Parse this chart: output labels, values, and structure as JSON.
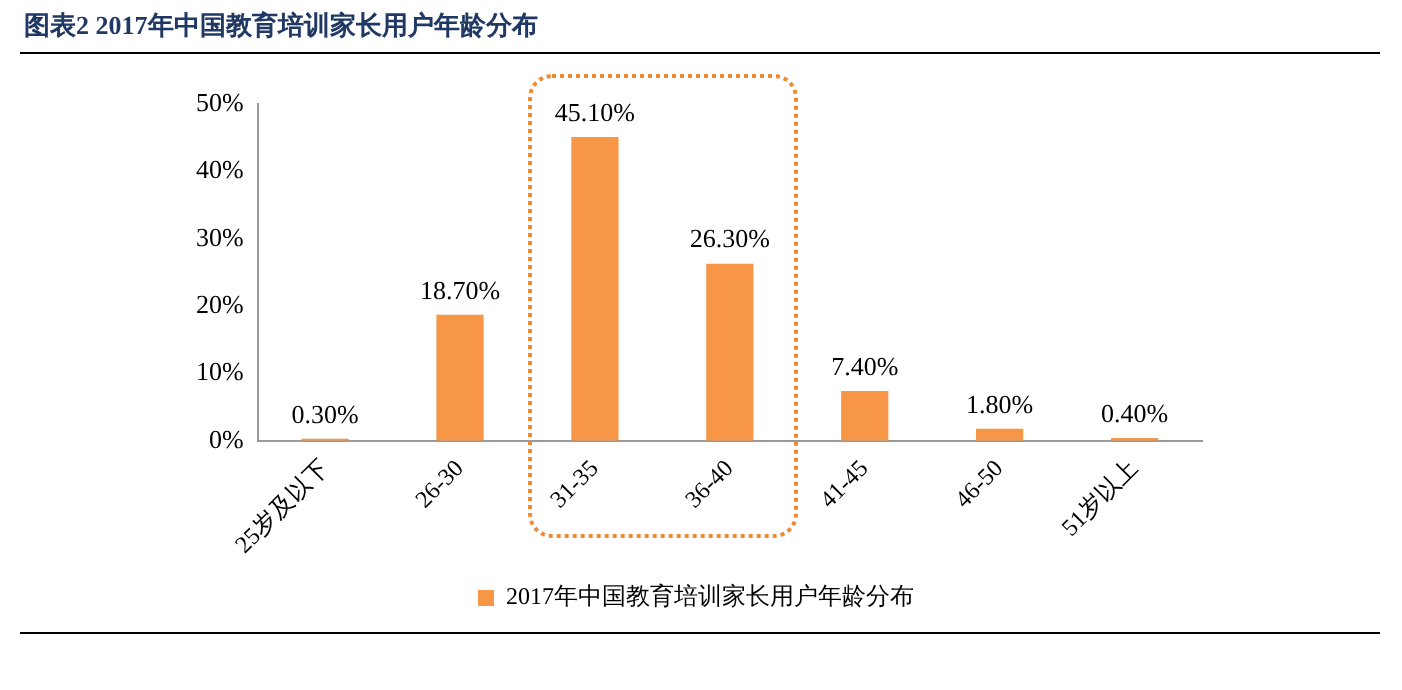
{
  "chart_data": {
    "type": "bar",
    "title": "图表2 2017年中国教育培训家长用户年龄分布",
    "categories": [
      "25岁及以下",
      "26-30",
      "31-35",
      "36-40",
      "41-45",
      "46-50",
      "51岁以上"
    ],
    "series": [
      {
        "name": "2017年中国教育培训家长用户年龄分布",
        "color": "#f79646",
        "values": [
          0.3,
          18.7,
          45.1,
          26.3,
          7.4,
          1.8,
          0.4
        ],
        "value_labels": [
          "0.30%",
          "18.70%",
          "45.10%",
          "26.30%",
          "7.40%",
          "1.80%",
          "0.40%"
        ]
      }
    ],
    "ylim": [
      0,
      50
    ],
    "yticks": [
      {
        "value": 0,
        "label": "0%"
      },
      {
        "value": 10,
        "label": "10%"
      },
      {
        "value": 20,
        "label": "20%"
      },
      {
        "value": 30,
        "label": "30%"
      },
      {
        "value": 40,
        "label": "40%"
      },
      {
        "value": 50,
        "label": "50%"
      }
    ],
    "grid": false,
    "legend": "bottom"
  }
}
